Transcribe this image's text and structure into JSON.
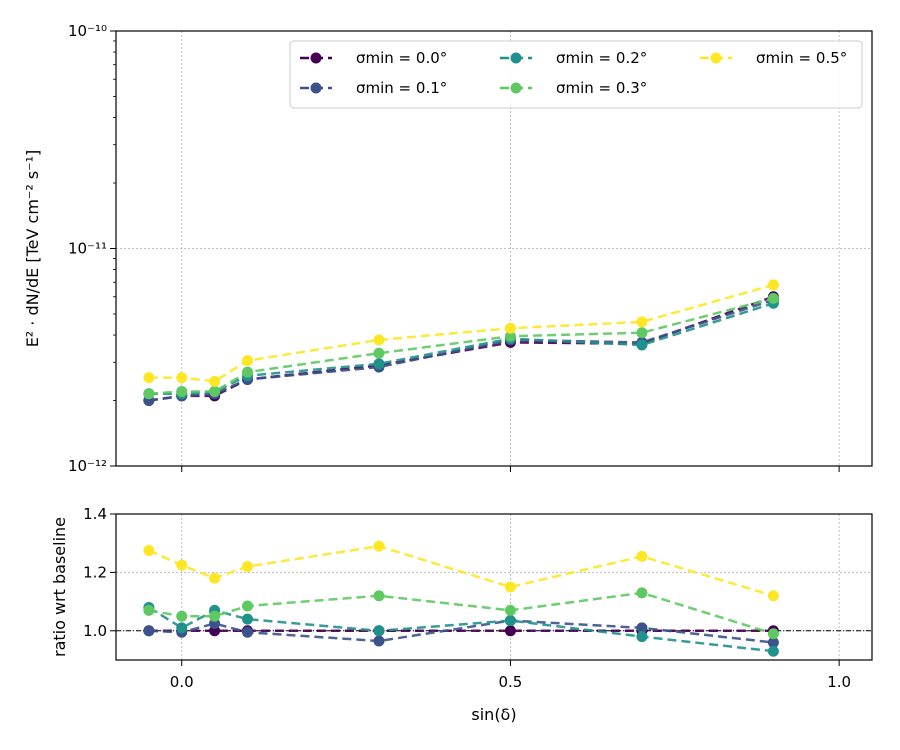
{
  "chart_data": [
    {
      "type": "line",
      "ylabel": "E² · dN/dE  [TeV cm⁻² s⁻¹]",
      "xlabel": "",
      "yscale": "log",
      "ylim": [
        1e-12,
        1e-10
      ],
      "xlim": [
        -0.1,
        1.05
      ],
      "xticks": [
        0.0,
        0.5,
        1.0
      ],
      "yticks": [
        {
          "value": 1e-12,
          "label": "10⁻¹²"
        },
        {
          "value": 1e-11,
          "label": "10⁻¹¹"
        },
        {
          "value": 1e-10,
          "label": "10⁻¹⁰"
        }
      ],
      "grid": true,
      "legend_position": "top-right",
      "x": [
        -0.05,
        0.0,
        0.05,
        0.1,
        0.3,
        0.5,
        0.7,
        0.9
      ],
      "series": [
        {
          "name": "σmin = 0.0°",
          "color": "#440154",
          "values": [
            2e-12,
            2.1e-12,
            2.1e-12,
            2.5e-12,
            2.9e-12,
            3.7e-12,
            3.65e-12,
            6e-12
          ]
        },
        {
          "name": "σmin = 0.1°",
          "color": "#3b528b",
          "values": [
            2e-12,
            2.1e-12,
            2.15e-12,
            2.5e-12,
            2.85e-12,
            3.8e-12,
            3.7e-12,
            5.8e-12
          ]
        },
        {
          "name": "σmin = 0.2°",
          "color": "#21918c",
          "values": [
            2.15e-12,
            2.15e-12,
            2.2e-12,
            2.6e-12,
            2.95e-12,
            3.85e-12,
            3.6e-12,
            5.6e-12
          ]
        },
        {
          "name": "σmin = 0.3°",
          "color": "#5ec962",
          "values": [
            2.15e-12,
            2.2e-12,
            2.2e-12,
            2.7e-12,
            3.3e-12,
            3.95e-12,
            4.1e-12,
            5.9e-12
          ]
        },
        {
          "name": "σmin = 0.5°",
          "color": "#fde725",
          "values": [
            2.55e-12,
            2.55e-12,
            2.45e-12,
            3.05e-12,
            3.8e-12,
            4.3e-12,
            4.6e-12,
            6.8e-12
          ]
        }
      ]
    },
    {
      "type": "line",
      "xlabel": "sin(δ)",
      "ylabel": "ratio wrt baseline",
      "ylim": [
        0.9,
        1.4
      ],
      "xlim": [
        -0.1,
        1.05
      ],
      "xticks": [
        0.0,
        0.5,
        1.0
      ],
      "yticks": [
        1.0,
        1.2,
        1.4
      ],
      "grid": true,
      "reference_line": 1.0,
      "x": [
        -0.05,
        0.0,
        0.05,
        0.1,
        0.3,
        0.5,
        0.7,
        0.9
      ],
      "series": [
        {
          "name": "σmin = 0.0°",
          "color": "#440154",
          "values": [
            1.0,
            1.0,
            1.0,
            1.0,
            1.0,
            1.0,
            1.0,
            1.0
          ]
        },
        {
          "name": "σmin = 0.1°",
          "color": "#3b528b",
          "values": [
            1.0,
            0.995,
            1.025,
            0.995,
            0.965,
            1.035,
            1.01,
            0.96
          ]
        },
        {
          "name": "σmin = 0.2°",
          "color": "#21918c",
          "values": [
            1.08,
            1.01,
            1.07,
            1.04,
            1.0,
            1.035,
            0.98,
            0.93
          ]
        },
        {
          "name": "σmin = 0.3°",
          "color": "#5ec962",
          "values": [
            1.07,
            1.05,
            1.05,
            1.085,
            1.12,
            1.07,
            1.13,
            0.99
          ]
        },
        {
          "name": "σmin = 0.5°",
          "color": "#fde725",
          "values": [
            1.275,
            1.225,
            1.18,
            1.22,
            1.29,
            1.15,
            1.255,
            1.12
          ]
        }
      ]
    }
  ]
}
